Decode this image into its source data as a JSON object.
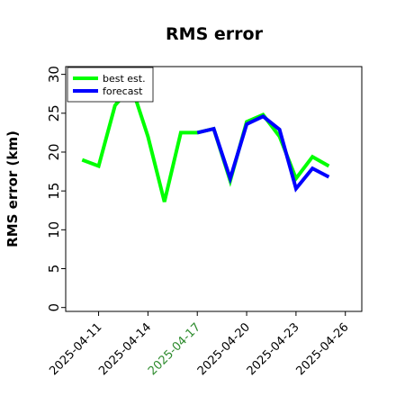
{
  "chart_data": {
    "type": "line",
    "title": "RMS error",
    "xlabel": "",
    "ylabel": "RMS error (km)",
    "ylim": [
      -0.5,
      31
    ],
    "yticks": [
      0,
      5,
      10,
      15,
      20,
      25,
      30
    ],
    "x": [
      "2025-04-10",
      "2025-04-11",
      "2025-04-12",
      "2025-04-13",
      "2025-04-14",
      "2025-04-15",
      "2025-04-16",
      "2025-04-17",
      "2025-04-18",
      "2025-04-19",
      "2025-04-20",
      "2025-04-21",
      "2025-04-22",
      "2025-04-23",
      "2025-04-24",
      "2025-04-25"
    ],
    "xlim": [
      "2025-04-09",
      "2025-04-27"
    ],
    "xtick_labels": [
      {
        "date": "2025-04-11",
        "label": "2025-04-11",
        "color": "#000000"
      },
      {
        "date": "2025-04-14",
        "label": "2025-04-14",
        "color": "#000000"
      },
      {
        "date": "2025-04-17",
        "label": "2025-04-17",
        "color": "#2e8b2e"
      },
      {
        "date": "2025-04-20",
        "label": "2025-04-20",
        "color": "#000000"
      },
      {
        "date": "2025-04-23",
        "label": "2025-04-23",
        "color": "#000000"
      },
      {
        "date": "2025-04-26",
        "label": "2025-04-26",
        "color": "#000000"
      }
    ],
    "legend_position": "top-left",
    "series": [
      {
        "name": "best est.",
        "color": "#00ff00",
        "values": [
          19.0,
          18.2,
          26.0,
          28.5,
          22.0,
          13.6,
          22.5,
          22.5,
          23.0,
          16.3,
          23.9,
          24.8,
          22.0,
          16.6,
          19.4,
          18.2
        ]
      },
      {
        "name": "forecast",
        "color": "#0000ff",
        "start_index": 7,
        "values": [
          null,
          null,
          null,
          null,
          null,
          null,
          null,
          22.5,
          23.0,
          16.6,
          23.6,
          24.6,
          22.9,
          15.3,
          17.9,
          16.8
        ]
      }
    ]
  }
}
